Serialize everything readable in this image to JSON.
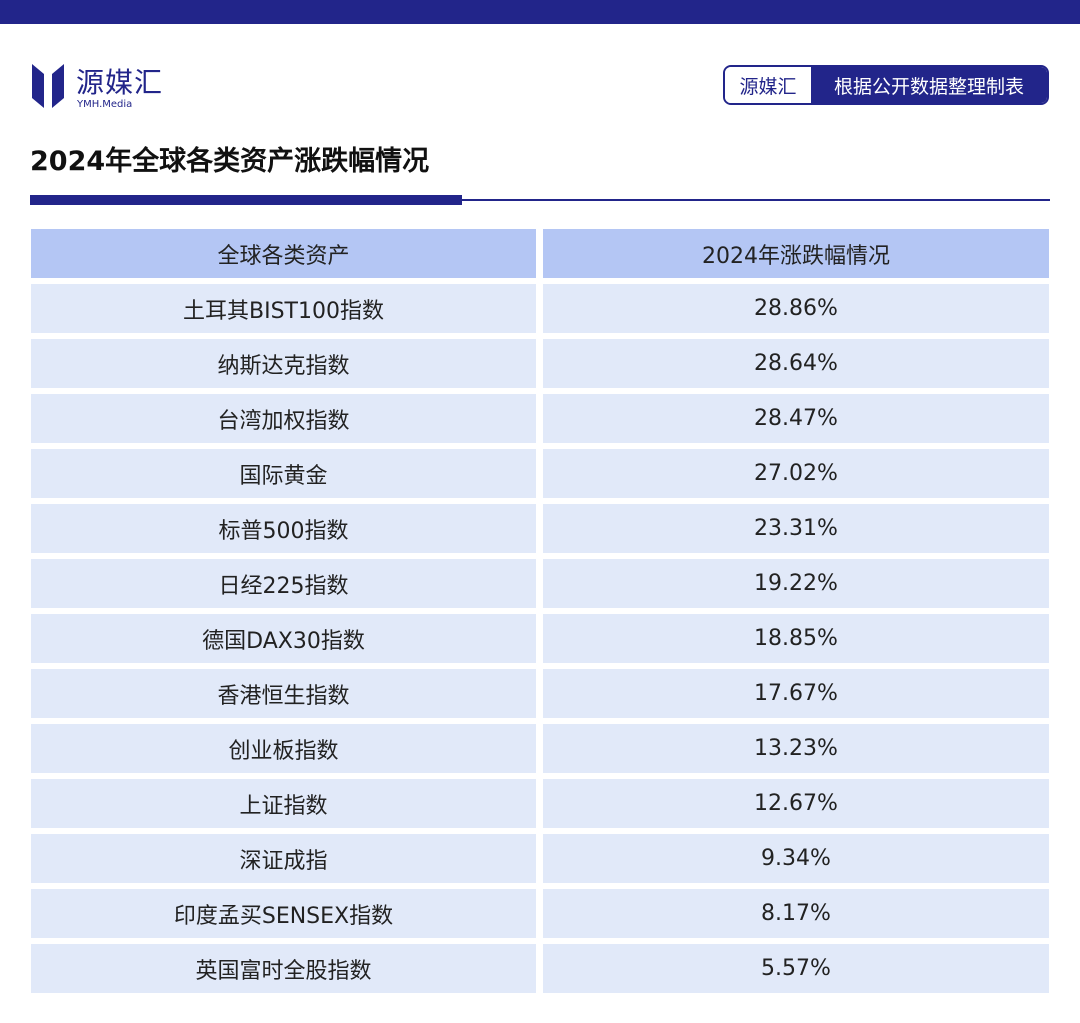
{
  "brand": {
    "name_cn": "源媒汇",
    "name_en": "YMH.Media",
    "colors": {
      "primary": "#22258a",
      "header_cell": "#b4c6f4",
      "body_cell": "#e1e9f9"
    }
  },
  "source_badge": {
    "brand": "源媒汇",
    "text": "根据公开数据整理制表"
  },
  "title": "2024年全球各类资产涨跌幅情况",
  "table": {
    "headers": [
      "全球各类资产",
      "2024年涨跌幅情况"
    ],
    "rows": [
      [
        "土耳其BIST100指数",
        "28.86%"
      ],
      [
        "纳斯达克指数",
        "28.64%"
      ],
      [
        "台湾加权指数",
        "28.47%"
      ],
      [
        "国际黄金",
        "27.02%"
      ],
      [
        "标普500指数",
        "23.31%"
      ],
      [
        "日经225指数",
        "19.22%"
      ],
      [
        "德国DAX30指数",
        "18.85%"
      ],
      [
        "香港恒生指数",
        "17.67%"
      ],
      [
        "创业板指数",
        "13.23%"
      ],
      [
        "上证指数",
        "12.67%"
      ],
      [
        "深证成指",
        "9.34%"
      ],
      [
        "印度孟买SENSEX指数",
        "8.17%"
      ],
      [
        "英国富时全股指数",
        "5.57%"
      ]
    ]
  }
}
